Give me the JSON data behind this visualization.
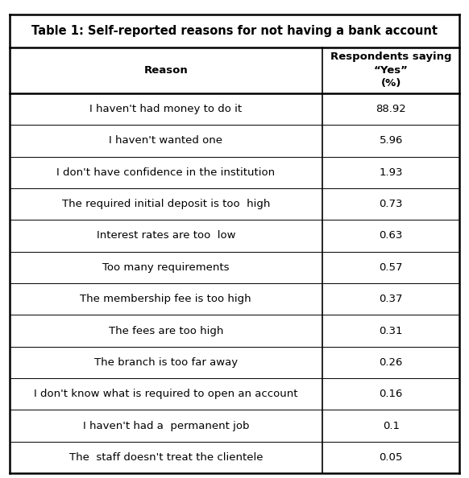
{
  "title": "Table 1: Self-reported reasons for not having a bank account",
  "col1_header": "Reason",
  "col2_header": "Respondents saying\n“Yes”\n(%)",
  "rows": [
    [
      "I haven't had money to do it",
      "88.92"
    ],
    [
      "I haven't wanted one",
      "5.96"
    ],
    [
      "I don't have confidence in the institution",
      "1.93"
    ],
    [
      "The required initial deposit is too  high",
      "0.73"
    ],
    [
      "Interest rates are too  low",
      "0.63"
    ],
    [
      "Too many requirements",
      "0.57"
    ],
    [
      "The membership fee is too high",
      "0.37"
    ],
    [
      "The fees are too high",
      "0.31"
    ],
    [
      "The branch is too far away",
      "0.26"
    ],
    [
      "I don't know what is required to open an account",
      "0.16"
    ],
    [
      "I haven't had a  permanent job",
      "0.1"
    ],
    [
      "The  staff doesn't treat the clientele",
      "0.05"
    ]
  ],
  "bg_color": "#ffffff",
  "title_fontsize": 10.5,
  "header_fontsize": 9.5,
  "cell_fontsize": 9.5,
  "col_split": 0.695,
  "fig_width": 5.82,
  "fig_height": 5.94,
  "dpi": 100
}
